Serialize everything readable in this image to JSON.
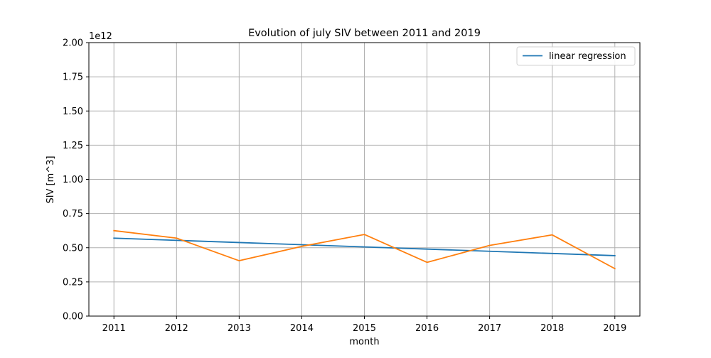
{
  "chart_data": {
    "type": "line",
    "title": "Evolution of july SIV between 2011 and 2019",
    "xlabel": "month",
    "ylabel": "SIV [m^3]",
    "y_offset_label": "1e12",
    "x": [
      2011,
      2012,
      2013,
      2014,
      2015,
      2016,
      2017,
      2018,
      2019
    ],
    "xlim": [
      2010.6,
      2019.4
    ],
    "ylim": [
      0,
      2.0
    ],
    "y_scale_note": "values in units of 1e12 m^3",
    "x_ticks": [
      "2011",
      "2012",
      "2013",
      "2014",
      "2015",
      "2016",
      "2017",
      "2018",
      "2019"
    ],
    "y_ticks": [
      "0.00",
      "0.25",
      "0.50",
      "0.75",
      "1.00",
      "1.25",
      "1.50",
      "1.75",
      "2.00"
    ],
    "y_tick_values": [
      0,
      0.25,
      0.5,
      0.75,
      1.0,
      1.25,
      1.5,
      1.75,
      2.0
    ],
    "grid": true,
    "legend_position": "top-right",
    "series": [
      {
        "name": "linear regression",
        "color": "#1f77b4",
        "values": [
          0.57,
          0.554,
          0.538,
          0.522,
          0.506,
          0.49,
          0.474,
          0.458,
          0.442
        ]
      },
      {
        "color": "#ff7f0e",
        "values": [
          0.625,
          0.57,
          0.405,
          0.51,
          0.597,
          0.393,
          0.517,
          0.594,
          0.347
        ]
      }
    ]
  }
}
